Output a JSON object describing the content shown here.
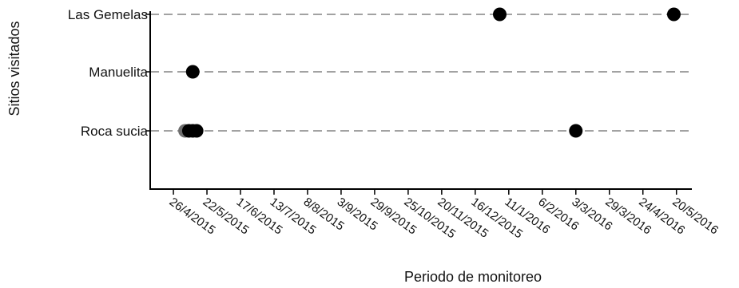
{
  "chart_data": {
    "type": "scatter",
    "xlabel": "Periodo de monitoreo",
    "ylabel": "Sitios visitados",
    "categories": [
      "Las Gemelas",
      "Manuelita",
      "Roca sucia"
    ],
    "x_ticks": [
      "26/4/2015",
      "22/5/2015",
      "17/6/2015",
      "13/7/2015",
      "8/8/2015",
      "3/9/2015",
      "29/9/2015",
      "25/10/2015",
      "20/11/2015",
      "16/12/2015",
      "11/1/2016",
      "6/2/2016",
      "3/3/2016",
      "29/3/2016",
      "24/4/2016",
      "20/5/2016"
    ],
    "xlim": [
      "2015-04-08",
      "2016-05-27"
    ],
    "grid": "horizontal dashed",
    "points": [
      {
        "category": "Las Gemelas",
        "date": "2016-01-04",
        "color": "#000000"
      },
      {
        "category": "Las Gemelas",
        "date": "2016-05-18",
        "color": "#000000"
      },
      {
        "category": "Manuelita",
        "date": "2015-05-11",
        "color": "#000000"
      },
      {
        "category": "Roca sucia",
        "date": "2015-05-05",
        "color": "#6e6e6e"
      },
      {
        "category": "Roca sucia",
        "date": "2015-05-08",
        "color": "#000000"
      },
      {
        "category": "Roca sucia",
        "date": "2015-05-11",
        "color": "#000000"
      },
      {
        "category": "Roca sucia",
        "date": "2015-05-14",
        "color": "#000000"
      },
      {
        "category": "Roca sucia",
        "date": "2016-03-03",
        "color": "#000000"
      }
    ]
  }
}
